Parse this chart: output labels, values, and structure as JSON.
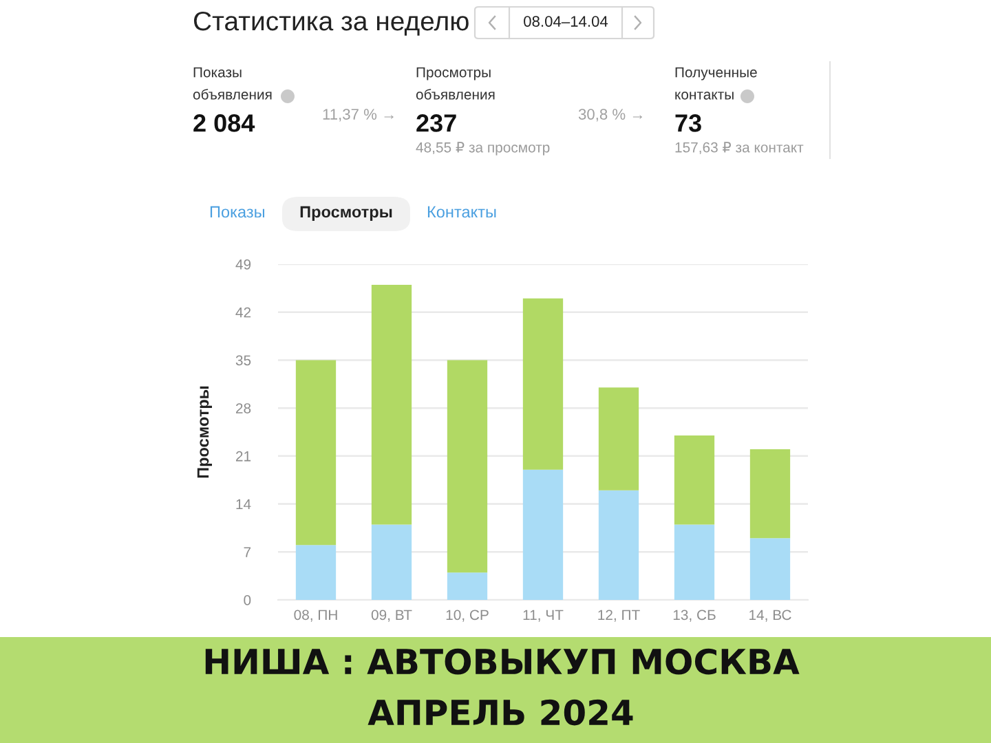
{
  "chart_data": {
    "type": "bar",
    "title": "Статистика за неделю",
    "subtitle": "08.04–14.04",
    "ylabel": "Просмотры",
    "categories": [
      "08, ПН",
      "09, ВТ",
      "10, СР",
      "11, ЧТ",
      "12, ПТ",
      "13, СБ",
      "14, ВС"
    ],
    "stacked": true,
    "series": [
      {
        "color": "#a9dcf6",
        "values": [
          8,
          11,
          4,
          19,
          16,
          11,
          9
        ]
      },
      {
        "color": "#b1d964",
        "values": [
          27,
          35,
          31,
          25,
          15,
          13,
          13
        ]
      }
    ],
    "ylim": [
      0,
      49
    ],
    "yticks": [
      0,
      7,
      14,
      21,
      28,
      35,
      42,
      49
    ],
    "grid": "y",
    "annotations": [
      "Показы\nобъявления",
      "2 084",
      "11,37 % →",
      "Просмотры\nобъявления",
      "237",
      "48,55 ₽ за просмотр",
      "30,8 % →",
      "Полученные\nконтакты",
      "73",
      "157,63 ₽ за контакт",
      "Показы",
      "Просмотры",
      "Контакты",
      "НИША : АВТОВЫКУП МОСКВА",
      "АПРЕЛЬ 2024"
    ]
  }
}
